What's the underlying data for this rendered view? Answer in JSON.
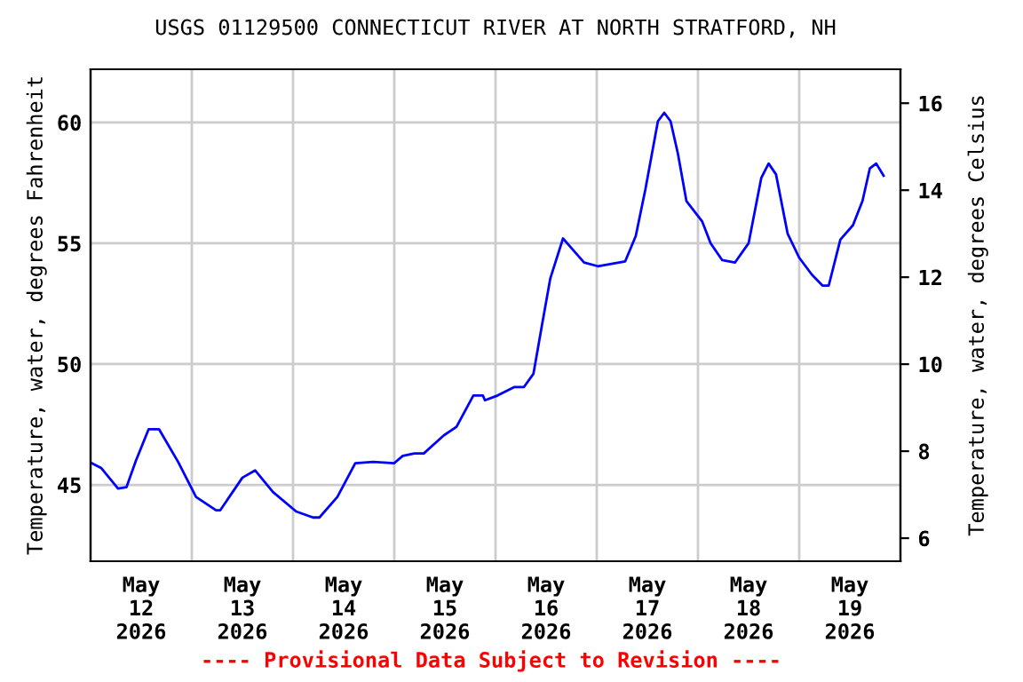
{
  "chart_data": {
    "type": "line",
    "title": "USGS 01129500 CONNECTICUT RIVER AT NORTH STRATFORD, NH",
    "ylabel": "Temperature, water, degrees Fahrenheit",
    "y2label": "Temperature, water, degrees Celsius",
    "annotations": [
      "---- Provisional Data Subject to Revision ----"
    ],
    "x": [
      "2026-05-12T00:15",
      "2026-05-12T02:30",
      "2026-05-12T06:30",
      "2026-05-12T08:30",
      "2026-05-12T10:45",
      "2026-05-12T13:45",
      "2026-05-12T16:15",
      "2026-05-12T20:45",
      "2026-05-13T01:00",
      "2026-05-13T05:45",
      "2026-05-13T06:45",
      "2026-05-13T12:00",
      "2026-05-13T15:00",
      "2026-05-13T19:15",
      "2026-05-14T00:45",
      "2026-05-14T04:45",
      "2026-05-14T06:15",
      "2026-05-14T10:30",
      "2026-05-14T14:45",
      "2026-05-14T19:00",
      "2026-05-15T00:00",
      "2026-05-15T02:00",
      "2026-05-15T04:45",
      "2026-05-15T07:00",
      "2026-05-15T11:45",
      "2026-05-15T14:45",
      "2026-05-15T18:45",
      "2026-05-15T21:00",
      "2026-05-15T21:30",
      "2026-05-16T00:30",
      "2026-05-16T04:30",
      "2026-05-16T06:45",
      "2026-05-16T09:00",
      "2026-05-16T11:00",
      "2026-05-16T13:00",
      "2026-05-16T16:00",
      "2026-05-16T18:00",
      "2026-05-16T21:00",
      "2026-05-17T00:15",
      "2026-05-17T06:45",
      "2026-05-17T09:15",
      "2026-05-17T11:30",
      "2026-05-17T14:30",
      "2026-05-17T16:00",
      "2026-05-17T17:30",
      "2026-05-17T19:15",
      "2026-05-17T21:15",
      "2026-05-18T01:00",
      "2026-05-18T03:00",
      "2026-05-18T05:45",
      "2026-05-18T08:45",
      "2026-05-18T12:00",
      "2026-05-18T15:00",
      "2026-05-18T16:45",
      "2026-05-18T18:30",
      "2026-05-18T21:15",
      "2026-05-19T00:00",
      "2026-05-19T03:00",
      "2026-05-19T05:30",
      "2026-05-19T07:00",
      "2026-05-19T09:45",
      "2026-05-19T12:45",
      "2026-05-19T15:00",
      "2026-05-19T16:45",
      "2026-05-19T18:15",
      "2026-05-19T20:00"
    ],
    "series": [
      {
        "color": "#0000ff",
        "values": [
          45.9,
          45.7,
          44.85,
          44.9,
          46.0,
          47.3,
          47.3,
          45.95,
          44.5,
          43.95,
          43.95,
          45.3,
          45.6,
          44.7,
          43.9,
          43.65,
          43.65,
          44.5,
          45.9,
          45.95,
          45.9,
          46.2,
          46.3,
          46.3,
          47.05,
          47.4,
          48.7,
          48.7,
          48.5,
          48.7,
          49.05,
          49.05,
          49.6,
          51.6,
          53.55,
          55.2,
          54.8,
          54.2,
          54.05,
          54.25,
          55.3,
          57.2,
          60.05,
          60.4,
          60.05,
          58.7,
          56.75,
          55.9,
          55.0,
          54.3,
          54.2,
          55.0,
          57.7,
          58.3,
          57.85,
          55.4,
          54.4,
          53.7,
          53.25,
          53.25,
          55.15,
          55.75,
          56.75,
          58.1,
          58.3,
          57.8
        ]
      }
    ],
    "xlim": [
      "2026-05-12T00:00",
      "2026-05-20T00:00"
    ],
    "xticks": [
      {
        "value": "2026-05-12T12:00",
        "label": "May\n12\n2026"
      },
      {
        "value": "2026-05-13T00:00",
        "label": null
      },
      {
        "value": "2026-05-13T12:00",
        "label": "May\n13\n2026"
      },
      {
        "value": "2026-05-14T00:00",
        "label": null
      },
      {
        "value": "2026-05-14T12:00",
        "label": "May\n14\n2026"
      },
      {
        "value": "2026-05-15T00:00",
        "label": null
      },
      {
        "value": "2026-05-15T12:00",
        "label": "May\n15\n2026"
      },
      {
        "value": "2026-05-16T00:00",
        "label": null
      },
      {
        "value": "2026-05-16T12:00",
        "label": "May\n16\n2026"
      },
      {
        "value": "2026-05-17T00:00",
        "label": null
      },
      {
        "value": "2026-05-17T12:00",
        "label": "May\n17\n2026"
      },
      {
        "value": "2026-05-18T00:00",
        "label": null
      },
      {
        "value": "2026-05-18T12:00",
        "label": "May\n18\n2026"
      },
      {
        "value": "2026-05-19T00:00",
        "label": null
      },
      {
        "value": "2026-05-19T12:00",
        "label": "May\n19\n2026"
      }
    ],
    "ylim": [
      41.84,
      62.2
    ],
    "yticks": [
      45,
      50,
      55,
      60
    ],
    "y2lim": [
      5.47,
      16.78
    ],
    "y2ticks": [
      6,
      8,
      10,
      12,
      14,
      16
    ],
    "grid": true,
    "marker": "none",
    "line_style": "solid"
  }
}
